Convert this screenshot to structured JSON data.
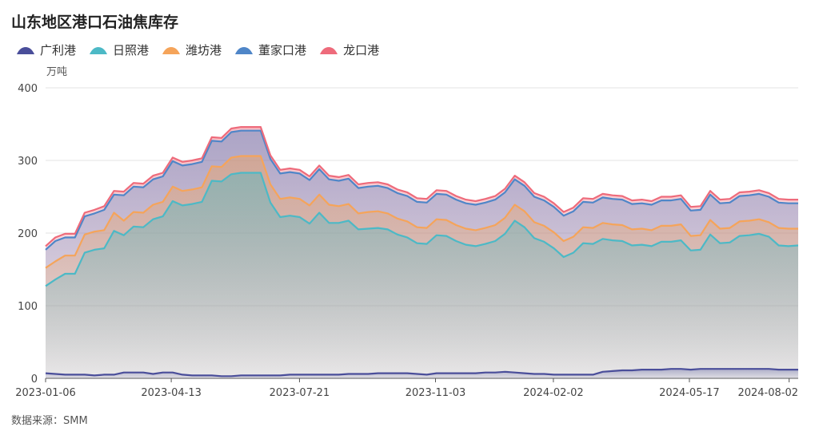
{
  "title": "山东地区港口石油焦库存",
  "unit": "万吨",
  "source": "数据来源：SMM",
  "chart_data": {
    "type": "area",
    "stacked": true,
    "title": "山东地区港口石油焦库存",
    "ylabel": "万吨",
    "ylim": [
      0,
      400
    ],
    "yticks": [
      0,
      100,
      200,
      300,
      400
    ],
    "grid": true,
    "legend_position": "top-left",
    "xticks": [
      "2023-01-06",
      "2023-04-13",
      "2023-07-21",
      "2023-11-03",
      "2024-02-02",
      "2024-05-17",
      "2024-08-02"
    ],
    "x_start": "2023-01-06",
    "x_end": "2024-08-09",
    "series": [
      {
        "name": "广利港",
        "color": "#4a4e9a",
        "values": [
          7,
          6,
          5,
          5,
          5,
          4,
          5,
          5,
          8,
          8,
          8,
          6,
          8,
          8,
          5,
          4,
          4,
          4,
          3,
          3,
          4,
          4,
          4,
          4,
          4,
          5,
          5,
          5,
          5,
          5,
          5,
          6,
          6,
          6,
          7,
          7,
          7,
          7,
          6,
          5,
          7,
          7,
          7,
          7,
          7,
          8,
          8,
          9,
          8,
          7,
          6,
          6,
          5,
          5,
          5,
          5,
          5,
          9,
          10,
          11,
          11,
          12,
          12,
          12,
          13,
          13,
          12,
          13,
          13,
          13,
          13,
          13,
          13,
          13,
          13,
          12,
          12,
          12
        ]
      },
      {
        "name": "日照港",
        "color": "#4cb9c6",
        "values": [
          120,
          130,
          139,
          139,
          168,
          173,
          174,
          198,
          189,
          201,
          200,
          213,
          215,
          236,
          233,
          236,
          239,
          268,
          268,
          278,
          279,
          279,
          279,
          238,
          218,
          219,
          217,
          208,
          223,
          209,
          209,
          211,
          199,
          200,
          200,
          198,
          191,
          187,
          180,
          180,
          190,
          189,
          182,
          177,
          175,
          177,
          181,
          190,
          209,
          201,
          187,
          182,
          174,
          162,
          168,
          181,
          180,
          183,
          180,
          178,
          172,
          172,
          170,
          176,
          175,
          177,
          164,
          164,
          185,
          173,
          174,
          183,
          184,
          186,
          182,
          171,
          170,
          171
        ]
      },
      {
        "name": "潍坊港",
        "color": "#f5a45a",
        "values": [
          25,
          25,
          25,
          25,
          25,
          25,
          25,
          25,
          20,
          20,
          20,
          20,
          20,
          20,
          20,
          20,
          20,
          20,
          20,
          23,
          23,
          23,
          23,
          25,
          25,
          25,
          25,
          25,
          25,
          25,
          23,
          23,
          22,
          23,
          23,
          22,
          22,
          22,
          22,
          22,
          22,
          22,
          22,
          22,
          22,
          22,
          22,
          22,
          22,
          22,
          22,
          22,
          22,
          22,
          22,
          22,
          22,
          22,
          22,
          22,
          22,
          22,
          22,
          22,
          22,
          22,
          20,
          20,
          20,
          20,
          20,
          20,
          20,
          20,
          20,
          24,
          24,
          23
        ]
      },
      {
        "name": "董家口港",
        "color": "#4f86c8",
        "values": [
          25,
          28,
          25,
          25,
          25,
          25,
          28,
          25,
          35,
          35,
          35,
          35,
          35,
          35,
          35,
          35,
          35,
          35,
          35,
          35,
          35,
          35,
          35,
          35,
          35,
          35,
          35,
          35,
          35,
          35,
          35,
          35,
          35,
          35,
          35,
          35,
          35,
          35,
          35,
          35,
          35,
          35,
          35,
          35,
          35,
          35,
          35,
          35,
          35,
          35,
          35,
          35,
          35,
          35,
          35,
          35,
          35,
          35,
          35,
          35,
          35,
          35,
          35,
          35,
          35,
          35,
          35,
          35,
          35,
          35,
          35,
          35,
          35,
          35,
          35,
          35,
          35,
          35
        ]
      },
      {
        "name": "龙口港",
        "color": "#ee6b7b",
        "values": [
          5,
          5,
          5,
          5,
          5,
          5,
          5,
          5,
          5,
          5,
          5,
          5,
          5,
          5,
          5,
          5,
          5,
          5,
          5,
          5,
          5,
          5,
          5,
          5,
          5,
          5,
          5,
          5,
          5,
          5,
          5,
          5,
          5,
          5,
          5,
          5,
          5,
          5,
          5,
          5,
          5,
          5,
          5,
          5,
          5,
          5,
          5,
          5,
          5,
          5,
          5,
          5,
          5,
          5,
          5,
          5,
          5,
          5,
          5,
          5,
          5,
          5,
          5,
          5,
          5,
          5,
          5,
          5,
          5,
          5,
          5,
          5,
          5,
          5,
          5,
          5,
          5,
          5
        ]
      }
    ]
  }
}
